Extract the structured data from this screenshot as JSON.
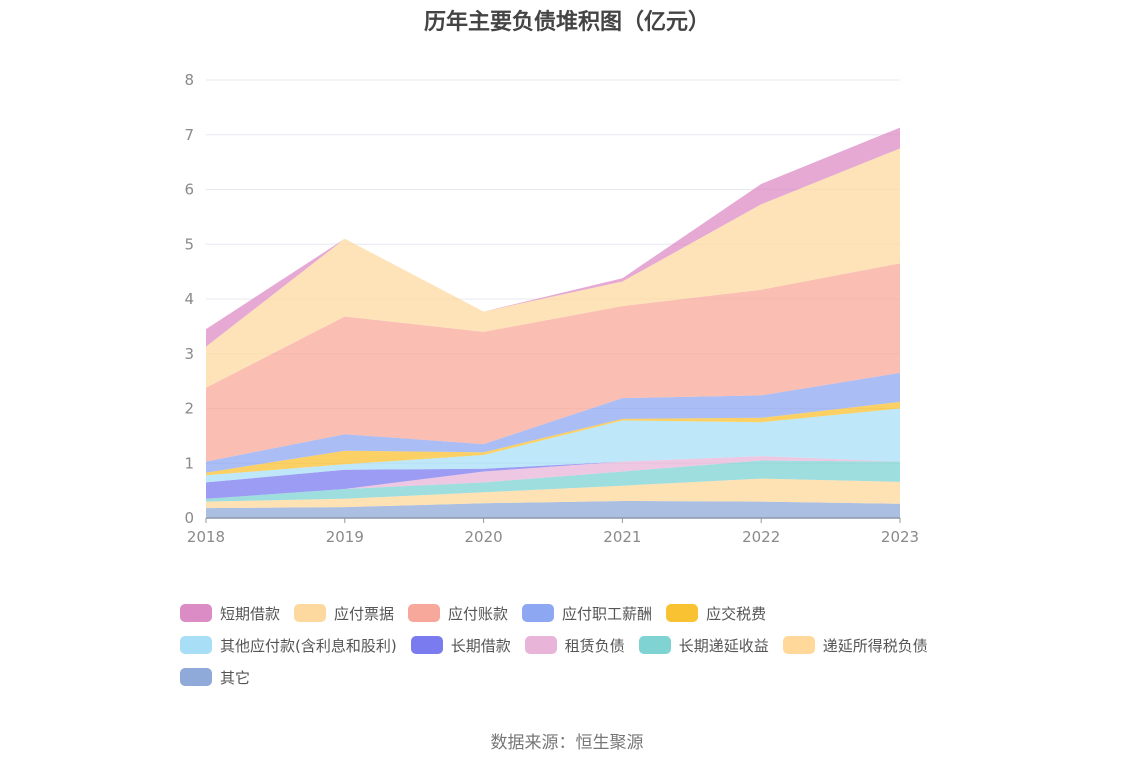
{
  "chart_data": {
    "type": "area",
    "title": "历年主要负债堆积图（亿元）",
    "x": [
      "2018",
      "2019",
      "2020",
      "2021",
      "2022",
      "2023"
    ],
    "ylim": [
      0,
      8
    ],
    "y_ticks": [
      "0",
      "1",
      "2",
      "3",
      "4",
      "5",
      "6",
      "7",
      "8"
    ],
    "grid": true,
    "legend_position": "bottom",
    "series": [
      {
        "name": "其它",
        "color": "#8fa9d9",
        "values": [
          0.18,
          0.2,
          0.27,
          0.31,
          0.3,
          0.26
        ]
      },
      {
        "name": "递延所得税负债",
        "color": "#ffd89a",
        "values": [
          0.12,
          0.15,
          0.2,
          0.28,
          0.42,
          0.4
        ]
      },
      {
        "name": "长期递延收益",
        "color": "#7fd3d3",
        "values": [
          0.05,
          0.18,
          0.18,
          0.26,
          0.33,
          0.37
        ]
      },
      {
        "name": "租赁负债",
        "color": "#e8b5d8",
        "values": [
          0.0,
          0.0,
          0.2,
          0.18,
          0.08,
          0.0
        ]
      },
      {
        "name": "长期借款",
        "color": "#7b7bf0",
        "values": [
          0.3,
          0.35,
          0.05,
          0.0,
          0.0,
          0.0
        ]
      },
      {
        "name": "其他应付款(含利息和股利)",
        "color": "#a8dff7",
        "values": [
          0.13,
          0.1,
          0.25,
          0.75,
          0.62,
          0.97
        ]
      },
      {
        "name": "应交税费",
        "color": "#f9c232",
        "values": [
          0.05,
          0.25,
          0.05,
          0.03,
          0.08,
          0.12
        ]
      },
      {
        "name": "应付职工薪酬",
        "color": "#8da7f2",
        "values": [
          0.2,
          0.3,
          0.15,
          0.38,
          0.41,
          0.53
        ]
      },
      {
        "name": "应付账款",
        "color": "#f8a89a",
        "values": [
          1.35,
          2.15,
          2.05,
          1.68,
          1.93,
          2.0
        ]
      },
      {
        "name": "应付票据",
        "color": "#fdd9a0",
        "values": [
          0.75,
          1.42,
          0.37,
          0.45,
          1.56,
          2.1
        ]
      },
      {
        "name": "短期借款",
        "color": "#dc8cc5",
        "values": [
          0.32,
          0.0,
          0.0,
          0.06,
          0.37,
          0.38
        ]
      }
    ],
    "legend_rows": [
      [
        "短期借款",
        "应付票据",
        "应付账款",
        "应付职工薪酬",
        "应交税费"
      ],
      [
        "其他应付款(含利息和股利)",
        "长期借款",
        "租赁负债",
        "长期递延收益",
        "递延所得税负债"
      ],
      [
        "其它"
      ]
    ]
  },
  "source_text": "数据来源：恒生聚源"
}
